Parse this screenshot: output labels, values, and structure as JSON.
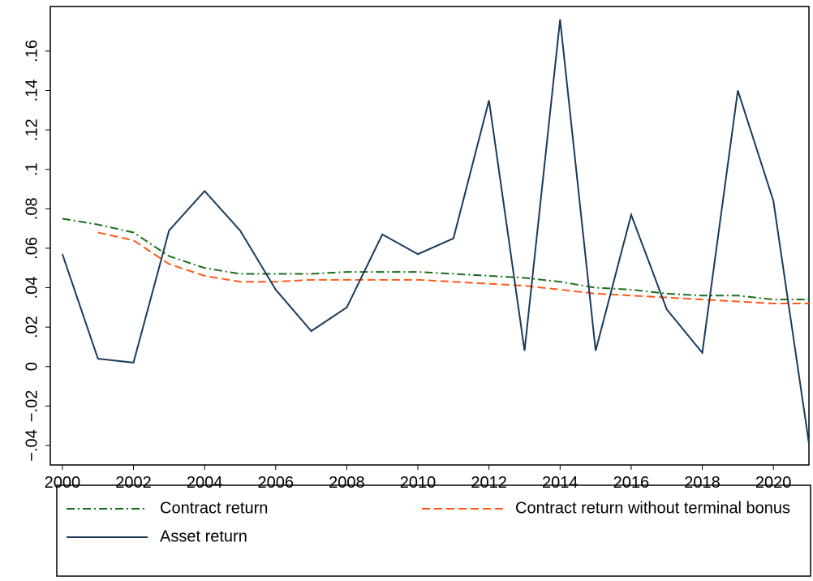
{
  "chart_data": {
    "type": "line",
    "x": [
      2000,
      2001,
      2002,
      2003,
      2004,
      2005,
      2006,
      2007,
      2008,
      2009,
      2010,
      2011,
      2012,
      2013,
      2014,
      2015,
      2016,
      2017,
      2018,
      2019,
      2020,
      2021
    ],
    "series": [
      {
        "name": "Contract return",
        "color": "#1a6e1a",
        "dash": "10 4 2 4",
        "values": [
          0.075,
          0.072,
          0.068,
          0.056,
          0.05,
          0.047,
          0.047,
          0.047,
          0.048,
          0.048,
          0.048,
          0.047,
          0.046,
          0.045,
          0.043,
          0.04,
          0.039,
          0.037,
          0.036,
          0.036,
          0.034,
          0.034
        ]
      },
      {
        "name": "Contract return without terminal bonus",
        "color": "#ff5a1a",
        "dash": "10 5",
        "values": [
          null,
          0.068,
          0.064,
          0.052,
          0.046,
          0.043,
          0.043,
          0.044,
          0.044,
          0.044,
          0.044,
          0.043,
          0.042,
          0.041,
          0.039,
          0.037,
          0.036,
          0.035,
          0.034,
          0.033,
          0.032,
          0.032
        ]
      },
      {
        "name": "Asset return",
        "color": "#1a3a5c",
        "dash": "none",
        "values": [
          0.057,
          0.004,
          0.002,
          0.069,
          0.089,
          0.069,
          0.039,
          0.018,
          0.03,
          0.067,
          0.057,
          0.065,
          0.135,
          0.008,
          0.176,
          0.008,
          0.077,
          0.029,
          0.007,
          0.14,
          0.084,
          -0.039
        ]
      }
    ],
    "xlim": [
      1999.66,
      2021
    ],
    "ylim": [
      -0.0499,
      0.1826
    ],
    "xticks": [
      2000,
      2002,
      2004,
      2006,
      2008,
      2010,
      2012,
      2014,
      2016,
      2018,
      2020
    ],
    "yticks": [
      {
        "value": -0.04,
        "label": "−.04"
      },
      {
        "value": -0.02,
        "label": "−.02"
      },
      0,
      {
        "value": 0.02,
        "label": ".02"
      },
      {
        "value": 0.04,
        "label": ".04"
      },
      {
        "value": 0.06,
        "label": ".06"
      },
      {
        "value": 0.08,
        "label": ".08"
      },
      {
        "value": 0.1,
        "label": ".1"
      },
      {
        "value": 0.12,
        "label": ".12"
      },
      {
        "value": 0.14,
        "label": ".14"
      },
      {
        "value": 0.16,
        "label": ".16"
      }
    ]
  }
}
